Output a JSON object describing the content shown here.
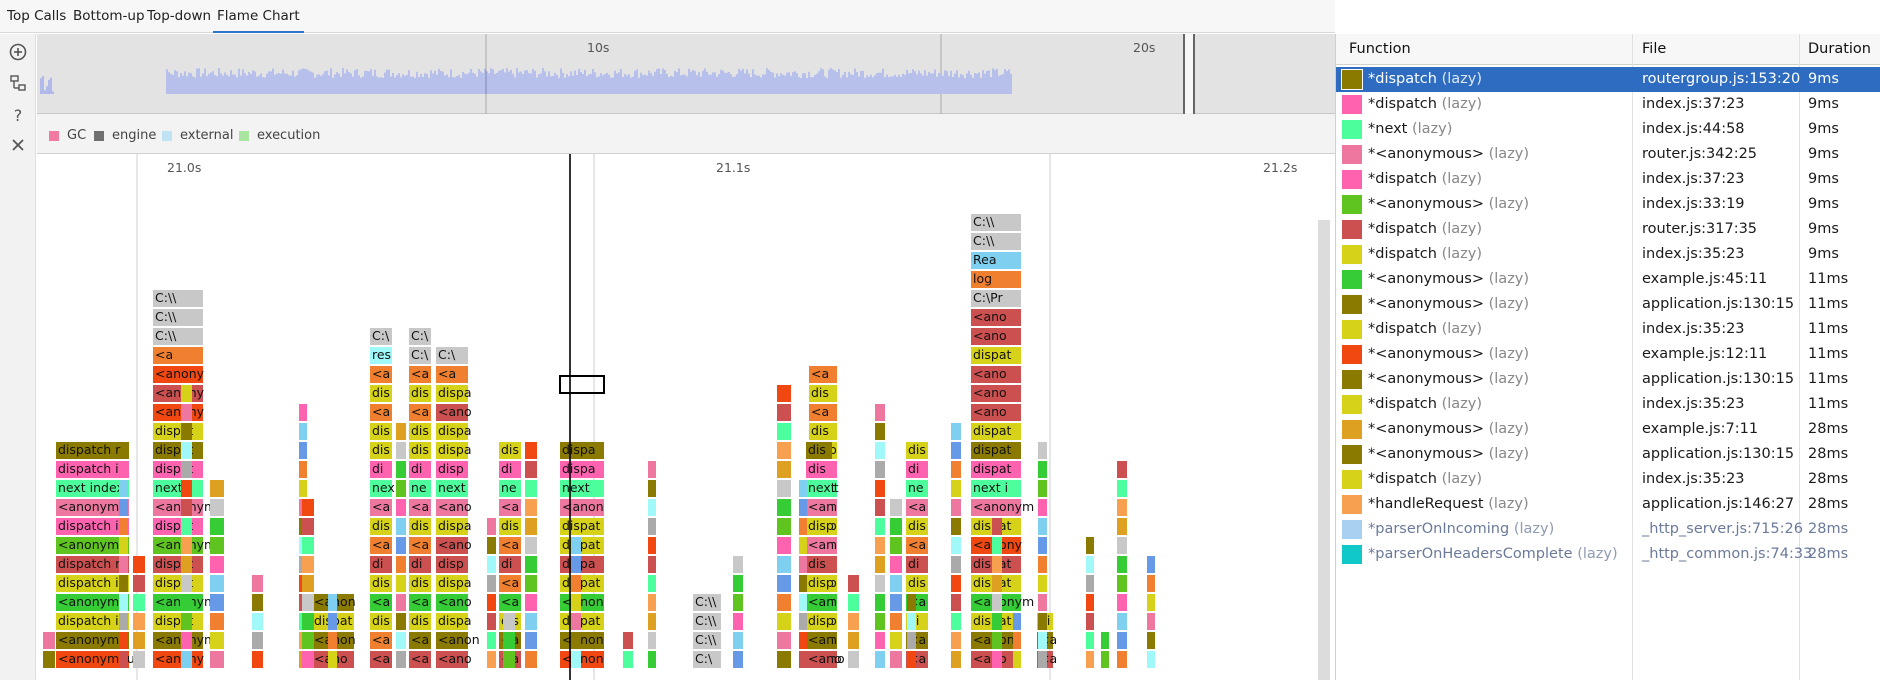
{
  "tabs": [
    {
      "label": "Top Calls",
      "active": false
    },
    {
      "label": "Bottom-up",
      "active": false
    },
    {
      "label": "Top-down",
      "active": false
    },
    {
      "label": "Flame Chart",
      "active": true
    }
  ],
  "toolbar": [
    {
      "icon": "zoom-in-icon"
    },
    {
      "icon": "collapse-tree-icon"
    },
    {
      "icon": "help-icon"
    },
    {
      "icon": "close-icon"
    }
  ],
  "overview": {
    "ticks": [
      "10s",
      "20s"
    ]
  },
  "legend": [
    {
      "label": "GC",
      "color": "#f07aa0"
    },
    {
      "label": "engine",
      "color": "#707070"
    },
    {
      "label": "external",
      "color": "#bfe3f5"
    },
    {
      "label": "execution",
      "color": "#a8e5a0"
    }
  ],
  "flame": {
    "ticks": [
      "21.0s",
      "21.1s",
      "21.2s"
    ],
    "frames": [
      {
        "label": "dispatch r",
        "color": "#8a7a00"
      },
      {
        "label": "dispatch i",
        "color": "#ff63b0"
      },
      {
        "label": "next index",
        "color": "#4dff9c"
      },
      {
        "label": "<anonym",
        "color": "#ee77a0"
      },
      {
        "label": "dispatch i",
        "color": "#ff63b0"
      },
      {
        "label": "<anonym",
        "color": "#60c420"
      },
      {
        "label": "dispatch r",
        "color": "#cc5050"
      },
      {
        "label": "dispatch i",
        "color": "#d6d21a"
      },
      {
        "label": "<anonym",
        "color": "#36cc36"
      },
      {
        "label": "<anonym",
        "color": "#8a7a00"
      },
      {
        "label": "dispatch i",
        "color": "#d6d21a"
      },
      {
        "label": "<anonymous",
        "color": "#f04810"
      },
      {
        "label": "<anony",
        "color": "#f04810"
      },
      {
        "label": "dispatch",
        "color": "#d6d21a"
      },
      {
        "label": "next ind",
        "color": "#4dff9c"
      },
      {
        "label": "<anony",
        "color": "#cc5050"
      },
      {
        "label": "C:\\\\",
        "color": "#c8c8c8"
      },
      {
        "label": "C:\\",
        "color": "#c8c8c8"
      },
      {
        "label": "res",
        "color": "#a0f8f8"
      },
      {
        "label": "Rea",
        "color": "#7fd0f0"
      },
      {
        "label": "log",
        "color": "#f08030"
      },
      {
        "label": "C:\\Pr",
        "color": "#c8c8c8"
      },
      {
        "label": "<a",
        "color": "#f08030"
      },
      {
        "label": "dis",
        "color": "#d6d21a"
      },
      {
        "label": "dispa",
        "color": "#d6d21a"
      },
      {
        "label": "disp",
        "color": "#d6d21a"
      },
      {
        "label": "<ano",
        "color": "#cc5050"
      },
      {
        "label": "<anon",
        "color": "#8a7a00"
      },
      {
        "label": "dispat",
        "color": "#d6d21a"
      },
      {
        "label": "nex",
        "color": "#4dff9c"
      },
      {
        "label": "ne",
        "color": "#4dff9c"
      },
      {
        "label": "next i",
        "color": "#4dff9c"
      },
      {
        "label": "next",
        "color": "#4dff9c"
      },
      {
        "label": "<an",
        "color": "#ee77a0"
      },
      {
        "label": "dispatc",
        "color": "#8a7a00"
      },
      {
        "label": "dispatc",
        "color": "#ff63b0"
      },
      {
        "label": "<anonym",
        "color": "#f04810"
      },
      {
        "label": "C:\\",
        "color": "#c8c8c8"
      }
    ]
  },
  "table": {
    "headers": [
      "Function",
      "File",
      "Duration"
    ],
    "rows": [
      {
        "name": "*dispatch",
        "tag": "(lazy)",
        "file": "routergroup.js:153:20",
        "duration": "9ms",
        "color": "#8a7a00",
        "selected": true,
        "dim": false
      },
      {
        "name": "*dispatch",
        "tag": "(lazy)",
        "file": "index.js:37:23",
        "duration": "9ms",
        "color": "#ff63b0",
        "selected": false,
        "dim": false
      },
      {
        "name": "*next",
        "tag": "(lazy)",
        "file": "index.js:44:58",
        "duration": "9ms",
        "color": "#4dff9c",
        "selected": false,
        "dim": false
      },
      {
        "name": "*<anonymous>",
        "tag": "(lazy)",
        "file": "router.js:342:25",
        "duration": "9ms",
        "color": "#ee77a0",
        "selected": false,
        "dim": false
      },
      {
        "name": "*dispatch",
        "tag": "(lazy)",
        "file": "index.js:37:23",
        "duration": "9ms",
        "color": "#ff63b0",
        "selected": false,
        "dim": false
      },
      {
        "name": "*<anonymous>",
        "tag": "(lazy)",
        "file": "index.js:33:19",
        "duration": "9ms",
        "color": "#60c420",
        "selected": false,
        "dim": false
      },
      {
        "name": "*dispatch",
        "tag": "(lazy)",
        "file": "router.js:317:35",
        "duration": "9ms",
        "color": "#cc5050",
        "selected": false,
        "dim": false
      },
      {
        "name": "*dispatch",
        "tag": "(lazy)",
        "file": "index.js:35:23",
        "duration": "9ms",
        "color": "#d6d21a",
        "selected": false,
        "dim": false
      },
      {
        "name": "*<anonymous>",
        "tag": "(lazy)",
        "file": "example.js:45:11",
        "duration": "11ms",
        "color": "#36cc36",
        "selected": false,
        "dim": false
      },
      {
        "name": "*<anonymous>",
        "tag": "(lazy)",
        "file": "application.js:130:15",
        "duration": "11ms",
        "color": "#8a7a00",
        "selected": false,
        "dim": false
      },
      {
        "name": "*dispatch",
        "tag": "(lazy)",
        "file": "index.js:35:23",
        "duration": "11ms",
        "color": "#d6d21a",
        "selected": false,
        "dim": false
      },
      {
        "name": "*<anonymous>",
        "tag": "(lazy)",
        "file": "example.js:12:11",
        "duration": "11ms",
        "color": "#f04810",
        "selected": false,
        "dim": false
      },
      {
        "name": "*<anonymous>",
        "tag": "(lazy)",
        "file": "application.js:130:15",
        "duration": "11ms",
        "color": "#8a7a00",
        "selected": false,
        "dim": false
      },
      {
        "name": "*dispatch",
        "tag": "(lazy)",
        "file": "index.js:35:23",
        "duration": "11ms",
        "color": "#d6d21a",
        "selected": false,
        "dim": false
      },
      {
        "name": "*<anonymous>",
        "tag": "(lazy)",
        "file": "example.js:7:11",
        "duration": "28ms",
        "color": "#dda020",
        "selected": false,
        "dim": false
      },
      {
        "name": "*<anonymous>",
        "tag": "(lazy)",
        "file": "application.js:130:15",
        "duration": "28ms",
        "color": "#8a7a00",
        "selected": false,
        "dim": false
      },
      {
        "name": "*dispatch",
        "tag": "(lazy)",
        "file": "index.js:35:23",
        "duration": "28ms",
        "color": "#d6d21a",
        "selected": false,
        "dim": false
      },
      {
        "name": "*handleRequest",
        "tag": "(lazy)",
        "file": "application.js:146:27",
        "duration": "28ms",
        "color": "#f6a050",
        "selected": false,
        "dim": false
      },
      {
        "name": "*parserOnIncoming",
        "tag": "(lazy)",
        "file": "_http_server.js:715:26",
        "duration": "28ms",
        "color": "#a8d0f0",
        "selected": false,
        "dim": true
      },
      {
        "name": "*parserOnHeadersComplete",
        "tag": "(lazy)",
        "file": "_http_common.js:74:33",
        "duration": "28ms",
        "color": "#10c8c8",
        "selected": false,
        "dim": true
      }
    ]
  }
}
